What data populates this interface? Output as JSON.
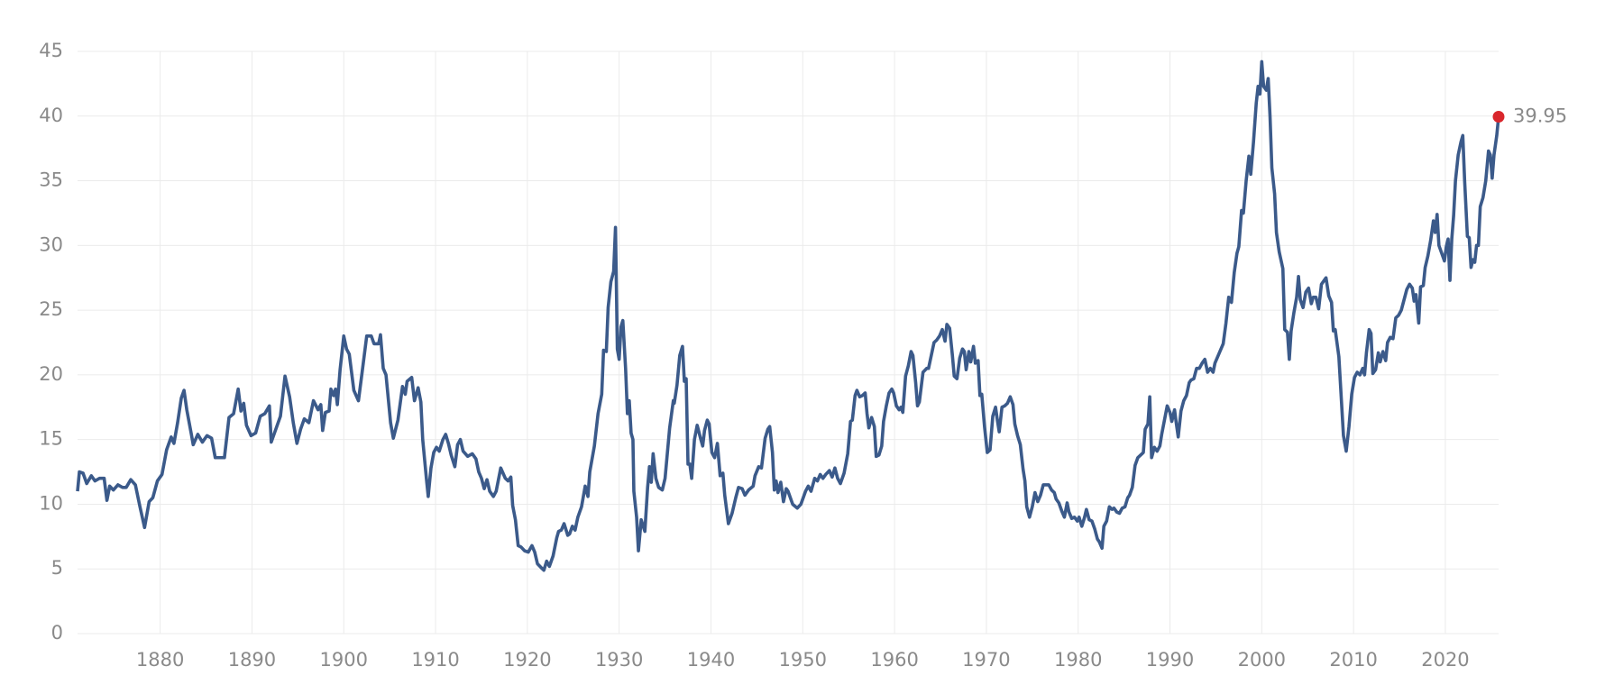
{
  "chart_data": {
    "type": "line",
    "x": [
      1871.0,
      1871.2,
      1871.6,
      1872.0,
      1872.5,
      1872.9,
      1873.4,
      1873.9,
      1874.2,
      1874.5,
      1874.9,
      1875.4,
      1875.9,
      1876.3,
      1876.8,
      1877.3,
      1877.8,
      1878.3,
      1878.8,
      1879.2,
      1879.7,
      1880.2,
      1880.7,
      1881.2,
      1881.5,
      1881.9,
      1882.3,
      1882.6,
      1882.9,
      1883.4,
      1883.6,
      1884.1,
      1884.6,
      1885.1,
      1885.6,
      1886.0,
      1886.5,
      1887.0,
      1887.5,
      1888.0,
      1888.5,
      1888.8,
      1889.1,
      1889.4,
      1889.9,
      1890.4,
      1890.9,
      1891.4,
      1891.9,
      1892.1,
      1892.5,
      1893.1,
      1893.6,
      1894.1,
      1894.5,
      1894.9,
      1895.3,
      1895.7,
      1896.2,
      1896.7,
      1897.2,
      1897.5,
      1897.7,
      1898.0,
      1898.4,
      1898.6,
      1898.9,
      1899.1,
      1899.3,
      1899.6,
      1900.0,
      1900.3,
      1900.6,
      1901.1,
      1901.6,
      1902.0,
      1902.5,
      1903.0,
      1903.3,
      1903.8,
      1904.0,
      1904.3,
      1904.6,
      1905.1,
      1905.4,
      1905.9,
      1906.4,
      1906.7,
      1906.9,
      1907.4,
      1907.7,
      1908.1,
      1908.4,
      1908.6,
      1909.0,
      1909.2,
      1909.5,
      1909.8,
      1910.1,
      1910.4,
      1910.8,
      1911.1,
      1911.4,
      1911.7,
      1912.1,
      1912.4,
      1912.7,
      1913.0,
      1913.5,
      1914.0,
      1914.4,
      1914.7,
      1915.0,
      1915.3,
      1915.6,
      1915.9,
      1916.3,
      1916.6,
      1917.1,
      1917.6,
      1917.9,
      1918.2,
      1918.4,
      1918.7,
      1919.0,
      1919.3,
      1919.7,
      1920.1,
      1920.5,
      1920.8,
      1921.1,
      1921.5,
      1921.8,
      1922.1,
      1922.4,
      1922.8,
      1923.2,
      1923.4,
      1923.7,
      1924.0,
      1924.4,
      1924.6,
      1924.9,
      1925.2,
      1925.5,
      1925.9,
      1926.3,
      1926.6,
      1926.8,
      1927.3,
      1927.7,
      1928.1,
      1928.3,
      1928.6,
      1928.8,
      1929.1,
      1929.4,
      1929.6,
      1929.8,
      1930.0,
      1930.2,
      1930.4,
      1930.7,
      1930.9,
      1931.1,
      1931.3,
      1931.5,
      1931.6,
      1931.9,
      1932.1,
      1932.4,
      1932.8,
      1933.1,
      1933.3,
      1933.5,
      1933.7,
      1934.0,
      1934.3,
      1934.7,
      1935.0,
      1935.5,
      1935.9,
      1936.0,
      1936.3,
      1936.6,
      1936.9,
      1937.1,
      1937.3,
      1937.5,
      1937.7,
      1937.9,
      1938.2,
      1938.5,
      1938.9,
      1939.1,
      1939.3,
      1939.6,
      1939.8,
      1940.1,
      1940.4,
      1940.7,
      1941.0,
      1941.3,
      1941.5,
      1941.9,
      1942.3,
      1942.7,
      1943.0,
      1943.4,
      1943.7,
      1944.1,
      1944.6,
      1944.8,
      1945.2,
      1945.5,
      1945.9,
      1946.2,
      1946.4,
      1946.7,
      1946.9,
      1947.1,
      1947.3,
      1947.6,
      1947.9,
      1948.2,
      1948.4,
      1948.9,
      1949.4,
      1949.8,
      1950.3,
      1950.6,
      1950.9,
      1951.3,
      1951.6,
      1951.9,
      1952.2,
      1952.5,
      1952.9,
      1953.2,
      1953.5,
      1953.8,
      1954.1,
      1954.5,
      1954.9,
      1955.2,
      1955.4,
      1955.7,
      1955.9,
      1956.2,
      1956.5,
      1956.8,
      1957.0,
      1957.2,
      1957.5,
      1957.8,
      1958.0,
      1958.3,
      1958.6,
      1958.8,
      1959.1,
      1959.4,
      1959.7,
      1959.9,
      1960.2,
      1960.5,
      1960.7,
      1960.9,
      1961.2,
      1961.5,
      1961.8,
      1962.0,
      1962.3,
      1962.5,
      1962.7,
      1963.1,
      1963.5,
      1963.7,
      1964.0,
      1964.3,
      1964.6,
      1964.9,
      1965.2,
      1965.5,
      1965.7,
      1966.0,
      1966.3,
      1966.5,
      1966.8,
      1967.1,
      1967.4,
      1967.6,
      1967.8,
      1968.1,
      1968.3,
      1968.6,
      1968.8,
      1969.1,
      1969.3,
      1969.5,
      1969.8,
      1970.1,
      1970.4,
      1970.7,
      1971.0,
      1971.2,
      1971.4,
      1971.7,
      1972.0,
      1972.3,
      1972.6,
      1972.9,
      1973.1,
      1973.4,
      1973.7,
      1974.0,
      1974.2,
      1974.4,
      1974.7,
      1975.0,
      1975.3,
      1975.6,
      1975.9,
      1976.2,
      1976.5,
      1976.8,
      1977.1,
      1977.4,
      1977.6,
      1977.9,
      1978.2,
      1978.5,
      1978.8,
      1979.0,
      1979.3,
      1979.6,
      1979.9,
      1980.1,
      1980.4,
      1980.7,
      1980.9,
      1981.2,
      1981.5,
      1981.8,
      1982.1,
      1982.3,
      1982.6,
      1982.8,
      1983.1,
      1983.4,
      1983.7,
      1983.9,
      1984.2,
      1984.5,
      1984.8,
      1985.1,
      1985.4,
      1985.6,
      1985.9,
      1986.2,
      1986.5,
      1986.8,
      1987.1,
      1987.3,
      1987.6,
      1987.8,
      1988.0,
      1988.3,
      1988.6,
      1988.9,
      1989.1,
      1989.4,
      1989.7,
      1990.0,
      1990.2,
      1990.5,
      1990.7,
      1990.9,
      1991.2,
      1991.5,
      1991.8,
      1992.1,
      1992.3,
      1992.6,
      1992.9,
      1993.2,
      1993.5,
      1993.8,
      1994.1,
      1994.4,
      1994.7,
      1994.9,
      1995.8,
      1996.1,
      1996.4,
      1996.7,
      1997.0,
      1997.3,
      1997.5,
      1997.8,
      1998.0,
      1998.3,
      1998.6,
      1998.8,
      1999.1,
      1999.4,
      1999.6,
      1999.8,
      2000.0,
      2000.2,
      2000.5,
      2000.7,
      2000.9,
      2001.1,
      2001.4,
      2001.6,
      2001.9,
      2002.3,
      2002.5,
      2002.8,
      2003.0,
      2003.2,
      2003.5,
      2003.8,
      2004.0,
      2004.2,
      2004.5,
      2004.8,
      2005.1,
      2005.4,
      2005.6,
      2005.9,
      2006.2,
      2006.5,
      2006.8,
      2007.0,
      2007.3,
      2007.6,
      2007.8,
      2008.0,
      2008.4,
      2008.9,
      2009.2,
      2009.5,
      2009.8,
      2010.1,
      2010.4,
      2010.7,
      2011.0,
      2011.2,
      2011.4,
      2011.7,
      2011.9,
      2012.1,
      2012.4,
      2012.7,
      2012.9,
      2013.2,
      2013.5,
      2013.7,
      2014.0,
      2014.3,
      2014.6,
      2014.9,
      2015.2,
      2015.5,
      2015.8,
      2016.1,
      2016.4,
      2016.6,
      2016.8,
      2017.1,
      2017.3,
      2017.6,
      2017.8,
      2018.1,
      2018.4,
      2018.7,
      2018.9,
      2019.1,
      2019.3,
      2019.6,
      2019.9,
      2020.1,
      2020.3,
      2020.5,
      2020.7,
      2020.9,
      2021.1,
      2021.4,
      2021.7,
      2021.9,
      2022.1,
      2022.4,
      2022.6,
      2022.8,
      2023.0,
      2023.2,
      2023.4,
      2023.6,
      2023.8,
      2024.1,
      2024.4,
      2024.7,
      2024.9,
      2025.1,
      2025.3,
      2025.6,
      2025.8
    ],
    "series": [
      {
        "color": "#3b5a8a",
        "values": [
          11.0,
          12.5,
          12.4,
          11.6,
          12.2,
          11.8,
          12.0,
          12.0,
          10.3,
          11.4,
          11.1,
          11.5,
          11.3,
          11.3,
          11.9,
          11.5,
          9.8,
          8.2,
          10.2,
          10.5,
          11.8,
          12.3,
          14.2,
          15.2,
          14.7,
          16.3,
          18.2,
          18.8,
          17.3,
          15.4,
          14.6,
          15.4,
          14.8,
          15.3,
          15.1,
          13.6,
          13.6,
          13.6,
          16.7,
          17.0,
          18.9,
          17.2,
          17.8,
          16.1,
          15.3,
          15.5,
          16.8,
          17.0,
          17.6,
          14.8,
          15.6,
          16.8,
          19.9,
          18.3,
          16.3,
          14.7,
          15.8,
          16.6,
          16.3,
          18.0,
          17.3,
          17.7,
          15.7,
          17.1,
          17.2,
          18.9,
          18.4,
          18.9,
          17.7,
          20.4,
          23.0,
          22.0,
          21.6,
          18.8,
          18.0,
          20.2,
          23.0,
          23.0,
          22.4,
          22.4,
          23.1,
          20.5,
          20.0,
          16.3,
          15.1,
          16.5,
          19.1,
          18.5,
          19.5,
          19.8,
          18.0,
          19.0,
          17.9,
          15.0,
          12.0,
          10.6,
          12.8,
          14.0,
          14.4,
          14.1,
          15.0,
          15.4,
          14.7,
          13.8,
          12.9,
          14.6,
          15.0,
          14.1,
          13.7,
          13.9,
          13.5,
          12.5,
          12.0,
          11.2,
          11.9,
          11.0,
          10.6,
          11.0,
          12.8,
          12.0,
          11.8,
          12.1,
          9.9,
          8.8,
          6.8,
          6.7,
          6.4,
          6.3,
          6.8,
          6.3,
          5.4,
          5.1,
          4.9,
          5.6,
          5.2,
          6.0,
          7.4,
          7.9,
          8.0,
          8.5,
          7.6,
          7.7,
          8.3,
          8.0,
          9.0,
          9.8,
          11.4,
          10.6,
          12.5,
          14.5,
          17.0,
          18.5,
          21.9,
          21.8,
          25.2,
          27.2,
          28.0,
          31.4,
          22.0,
          21.2,
          23.7,
          24.2,
          20.5,
          17.0,
          18.0,
          15.5,
          15.0,
          11.0,
          9.0,
          6.4,
          8.8,
          7.9,
          11.3,
          12.9,
          11.7,
          13.9,
          12.0,
          11.3,
          11.1,
          12.0,
          15.9,
          18.0,
          17.8,
          19.2,
          21.5,
          22.2,
          19.5,
          19.7,
          13.1,
          13.1,
          12.0,
          15.0,
          16.1,
          15.0,
          14.5,
          15.7,
          16.5,
          16.2,
          14.0,
          13.6,
          14.7,
          12.2,
          12.4,
          10.7,
          8.5,
          9.3,
          10.5,
          11.3,
          11.2,
          10.7,
          11.1,
          11.4,
          12.2,
          12.9,
          12.8,
          15.1,
          15.8,
          16.0,
          14.0,
          11.1,
          11.8,
          10.9,
          11.7,
          10.2,
          11.2,
          11.0,
          10.0,
          9.7,
          10.0,
          11.0,
          11.4,
          11.0,
          12.0,
          11.8,
          12.3,
          12.0,
          12.3,
          12.6,
          12.1,
          12.8,
          12.0,
          11.6,
          12.4,
          13.9,
          16.4,
          16.5,
          18.4,
          18.8,
          18.3,
          18.4,
          18.6,
          17.0,
          15.9,
          16.7,
          16.0,
          13.7,
          13.8,
          14.5,
          16.4,
          17.6,
          18.6,
          18.9,
          18.6,
          17.6,
          17.3,
          17.5,
          17.1,
          19.9,
          20.7,
          21.8,
          21.5,
          19.4,
          17.6,
          17.9,
          20.2,
          20.5,
          20.5,
          21.5,
          22.5,
          22.7,
          23.0,
          23.5,
          22.6,
          23.9,
          23.6,
          21.5,
          19.9,
          19.7,
          21.3,
          22.0,
          21.8,
          20.4,
          21.8,
          21.0,
          22.2,
          20.9,
          21.1,
          18.4,
          18.5,
          16.0,
          14.0,
          14.2,
          16.8,
          17.5,
          16.5,
          15.6,
          17.5,
          17.6,
          17.8,
          18.3,
          17.7,
          16.2,
          15.3,
          14.6,
          12.7,
          11.8,
          9.8,
          9.0,
          9.8,
          10.9,
          10.2,
          10.7,
          11.5,
          11.5,
          11.5,
          11.1,
          10.9,
          10.4,
          10.1,
          9.5,
          9.0,
          10.1,
          9.4,
          8.9,
          9.0,
          8.7,
          9.0,
          8.3,
          9.0,
          9.6,
          8.8,
          8.7,
          8.1,
          7.3,
          7.1,
          6.6,
          8.3,
          8.7,
          9.8,
          9.6,
          9.7,
          9.4,
          9.3,
          9.7,
          9.8,
          10.5,
          10.7,
          11.3,
          13.0,
          13.6,
          13.8,
          14.0,
          15.8,
          16.2,
          18.3,
          13.6,
          14.4,
          14.1,
          14.5,
          15.4,
          16.5,
          17.6,
          17.1,
          16.4,
          17.3,
          16.2,
          15.2,
          17.2,
          18.0,
          18.4,
          19.4,
          19.6,
          19.7,
          20.5,
          20.5,
          20.9,
          21.2,
          20.2,
          20.5,
          20.2,
          20.9,
          22.4,
          24.0,
          26.0,
          25.6,
          27.9,
          29.4,
          29.9,
          32.7,
          32.5,
          35.0,
          36.9,
          35.5,
          38.0,
          41.0,
          42.3,
          41.7,
          44.2,
          42.3,
          42.0,
          42.9,
          40.0,
          36.0,
          34.0,
          31.0,
          29.5,
          28.2,
          23.5,
          23.3,
          21.2,
          23.4,
          24.8,
          26.0,
          27.6,
          25.8,
          25.2,
          26.4,
          26.7,
          25.5,
          26.0,
          26.0,
          25.1,
          27.0,
          27.3,
          27.5,
          26.1,
          25.6,
          23.4,
          23.5,
          21.4,
          15.3,
          14.1,
          16.0,
          18.5,
          19.8,
          20.2,
          20.0,
          20.5,
          20.0,
          21.7,
          23.5,
          23.2,
          20.1,
          20.4,
          21.7,
          21.0,
          21.8,
          21.1,
          22.5,
          22.9,
          22.8,
          24.4,
          24.6,
          25.0,
          25.8,
          26.6,
          27.0,
          26.7,
          25.7,
          26.2,
          24.0,
          26.8,
          26.9,
          28.3,
          29.2,
          30.4,
          31.9,
          31.0,
          32.4,
          30.0,
          29.4,
          28.8,
          29.9,
          30.5,
          27.3,
          30.5,
          32.3,
          35.0,
          37.0,
          38.0,
          38.5,
          35.0,
          30.7,
          30.6,
          28.3,
          28.9,
          28.7,
          30.0,
          30.0,
          33.0,
          33.7,
          35.0,
          37.3,
          37.0,
          35.2,
          37.0,
          38.5,
          39.95
        ]
      }
    ],
    "end_marker_color": "#d9262c",
    "xlim": [
      1871,
      2025.8
    ],
    "ylim": [
      0,
      45
    ],
    "xticks": [
      1880,
      1890,
      1900,
      1910,
      1920,
      1930,
      1940,
      1950,
      1960,
      1970,
      1980,
      1990,
      2000,
      2010,
      2020
    ],
    "yticks": [
      0,
      5,
      10,
      15,
      20,
      25,
      30,
      35,
      40,
      45
    ],
    "grid": true
  }
}
